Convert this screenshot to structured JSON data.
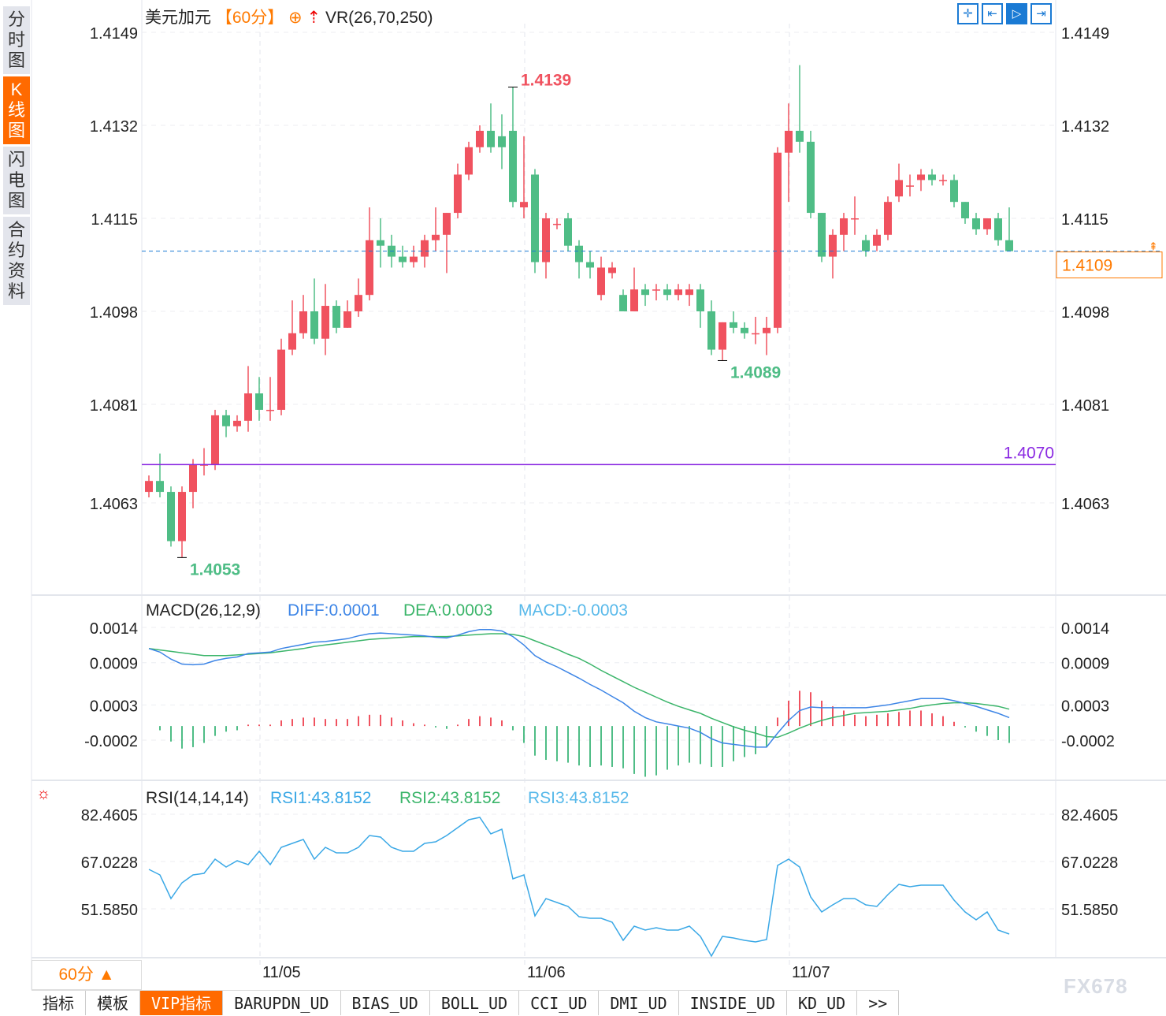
{
  "sidebar": {
    "items": [
      {
        "label": "分时图",
        "active": false
      },
      {
        "label": "K线图",
        "active": true
      },
      {
        "label": "闪电图",
        "active": false
      },
      {
        "label": "合约资料",
        "active": false
      }
    ]
  },
  "header": {
    "symbol": "美元加元",
    "period": "【60分】",
    "indicator": "VR(26,70,250)",
    "tools": [
      "crosshair-icon",
      "scroll-start-icon",
      "scroll-latest-icon",
      "jump-end-icon"
    ]
  },
  "colors": {
    "up": "#f0525f",
    "down": "#4fbd86",
    "diff": "#3d85e6",
    "dea": "#3bb56a",
    "macd": "#58b9ea",
    "rsi": "#3aa8e6",
    "last": "#ff7a00",
    "hline": "#8b2be2"
  },
  "chart_data": [
    {
      "type": "candlestick",
      "panel": "price",
      "yticks": [
        "1.4149",
        "1.4132",
        "1.4115",
        "1.4098",
        "1.4081",
        "1.4063"
      ],
      "ylim": [
        1.4045,
        1.4152
      ],
      "xticks": [
        "11/05",
        "11/06",
        "11/07"
      ],
      "xtick_index": [
        10,
        34,
        58
      ],
      "last_price": "1.4109",
      "horizontal_line": "1.4070",
      "high_label": "1.4139",
      "low_label": "1.4089",
      "low2_label": "1.4053",
      "ohlc": [
        [
          1.4065,
          1.4067,
          1.4068,
          1.4064
        ],
        [
          1.4067,
          1.4065,
          1.4072,
          1.4064
        ],
        [
          1.4065,
          1.4056,
          1.4066,
          1.4055
        ],
        [
          1.4056,
          1.4065,
          1.4066,
          1.4053
        ],
        [
          1.4065,
          1.407,
          1.4071,
          1.4062
        ],
        [
          1.407,
          1.407,
          1.4073,
          1.4068
        ],
        [
          1.407,
          1.4079,
          1.408,
          1.4069
        ],
        [
          1.4079,
          1.4077,
          1.408,
          1.4075
        ],
        [
          1.4077,
          1.4078,
          1.4079,
          1.4076
        ],
        [
          1.4078,
          1.4083,
          1.4088,
          1.4076
        ],
        [
          1.4083,
          1.408,
          1.4086,
          1.4078
        ],
        [
          1.408,
          1.408,
          1.4086,
          1.4078
        ],
        [
          1.408,
          1.4091,
          1.4093,
          1.4079
        ],
        [
          1.4091,
          1.4094,
          1.41,
          1.409
        ],
        [
          1.4094,
          1.4098,
          1.4101,
          1.4093
        ],
        [
          1.4098,
          1.4093,
          1.4104,
          1.4092
        ],
        [
          1.4093,
          1.4099,
          1.4103,
          1.409
        ],
        [
          1.4099,
          1.4095,
          1.41,
          1.4094
        ],
        [
          1.4095,
          1.4098,
          1.41,
          1.4095
        ],
        [
          1.4098,
          1.4101,
          1.4104,
          1.4097
        ],
        [
          1.4101,
          1.4111,
          1.4117,
          1.41
        ],
        [
          1.4111,
          1.411,
          1.4115,
          1.4106
        ],
        [
          1.411,
          1.4108,
          1.4112,
          1.4106
        ],
        [
          1.4108,
          1.4107,
          1.411,
          1.4106
        ],
        [
          1.4107,
          1.4108,
          1.411,
          1.4106
        ],
        [
          1.4108,
          1.4111,
          1.4112,
          1.4106
        ],
        [
          1.4111,
          1.4112,
          1.4117,
          1.4109
        ],
        [
          1.4112,
          1.4116,
          1.4116,
          1.4105
        ],
        [
          1.4116,
          1.4123,
          1.4125,
          1.4115
        ],
        [
          1.4123,
          1.4128,
          1.4129,
          1.4122
        ],
        [
          1.4128,
          1.4131,
          1.4132,
          1.4127
        ],
        [
          1.4131,
          1.4128,
          1.4136,
          1.4127
        ],
        [
          1.413,
          1.4128,
          1.4134,
          1.4124
        ],
        [
          1.4131,
          1.4118,
          1.4139,
          1.4117
        ],
        [
          1.4117,
          1.4118,
          1.413,
          1.4115
        ],
        [
          1.4123,
          1.4107,
          1.4124,
          1.4105
        ],
        [
          1.4107,
          1.4115,
          1.4116,
          1.4104
        ],
        [
          1.4114,
          1.4114,
          1.4115,
          1.4113
        ],
        [
          1.4115,
          1.411,
          1.4116,
          1.4109
        ],
        [
          1.411,
          1.4107,
          1.4111,
          1.4104
        ],
        [
          1.4107,
          1.4106,
          1.4109,
          1.4104
        ],
        [
          1.4101,
          1.4106,
          1.4108,
          1.41
        ],
        [
          1.4105,
          1.4106,
          1.4107,
          1.4104
        ],
        [
          1.4101,
          1.4098,
          1.4102,
          1.4098
        ],
        [
          1.4098,
          1.4102,
          1.4106,
          1.4098
        ],
        [
          1.4102,
          1.4101,
          1.4103,
          1.4099
        ],
        [
          1.4102,
          1.4102,
          1.4103,
          1.41
        ],
        [
          1.4102,
          1.4101,
          1.4103,
          1.41
        ],
        [
          1.4101,
          1.4102,
          1.4103,
          1.41
        ],
        [
          1.4101,
          1.4102,
          1.4103,
          1.4099
        ],
        [
          1.4102,
          1.4098,
          1.4103,
          1.4095
        ],
        [
          1.4098,
          1.4091,
          1.41,
          1.409
        ],
        [
          1.4091,
          1.4096,
          1.4096,
          1.4089
        ],
        [
          1.4096,
          1.4095,
          1.4098,
          1.4094
        ],
        [
          1.4095,
          1.4094,
          1.4096,
          1.4093
        ],
        [
          1.4094,
          1.4094,
          1.4097,
          1.4092
        ],
        [
          1.4094,
          1.4095,
          1.4097,
          1.409
        ],
        [
          1.4095,
          1.4127,
          1.4128,
          1.4094
        ],
        [
          1.4127,
          1.4131,
          1.4136,
          1.4118
        ],
        [
          1.4131,
          1.4129,
          1.4143,
          1.4127
        ],
        [
          1.4129,
          1.4116,
          1.4131,
          1.4115
        ],
        [
          1.4116,
          1.4108,
          1.4116,
          1.4107
        ],
        [
          1.4108,
          1.4112,
          1.4113,
          1.4104
        ],
        [
          1.4112,
          1.4115,
          1.4116,
          1.4109
        ],
        [
          1.4115,
          1.4115,
          1.4119,
          1.4112
        ],
        [
          1.4111,
          1.4109,
          1.4112,
          1.4108
        ],
        [
          1.411,
          1.4112,
          1.4113,
          1.4109
        ],
        [
          1.4112,
          1.4118,
          1.4119,
          1.4111
        ],
        [
          1.4119,
          1.4122,
          1.4125,
          1.4118
        ],
        [
          1.4121,
          1.4121,
          1.4123,
          1.4119
        ],
        [
          1.4122,
          1.4123,
          1.4124,
          1.412
        ],
        [
          1.4123,
          1.4122,
          1.4124,
          1.4121
        ],
        [
          1.4122,
          1.4122,
          1.4123,
          1.4121
        ],
        [
          1.4122,
          1.4118,
          1.4123,
          1.4117
        ],
        [
          1.4118,
          1.4115,
          1.4118,
          1.4114
        ],
        [
          1.4115,
          1.4113,
          1.4116,
          1.4112
        ],
        [
          1.4113,
          1.4115,
          1.4115,
          1.4112
        ],
        [
          1.4115,
          1.4111,
          1.4116,
          1.411
        ],
        [
          1.4111,
          1.4109,
          1.4117,
          1.4109
        ]
      ]
    },
    {
      "type": "line+bar",
      "panel": "macd",
      "title": "MACD(26,12,9)",
      "legend": [
        "DIFF:0.0001",
        "DEA:0.0003",
        "MACD:-0.0003"
      ],
      "yticks": [
        "0.0014",
        "0.0009",
        "0.0003",
        "-0.0002"
      ],
      "ylim": [
        -0.00087,
        0.00176
      ],
      "diff": [
        0.0011,
        0.00105,
        0.00095,
        0.00088,
        0.00087,
        0.00088,
        0.00093,
        0.00096,
        0.00098,
        0.00103,
        0.00104,
        0.00105,
        0.0011,
        0.00113,
        0.00116,
        0.00119,
        0.0012,
        0.00122,
        0.00124,
        0.00128,
        0.00131,
        0.00132,
        0.00131,
        0.0013,
        0.00129,
        0.00128,
        0.00126,
        0.00125,
        0.00129,
        0.00134,
        0.00137,
        0.00137,
        0.00135,
        0.00127,
        0.00115,
        0.001,
        0.00091,
        0.00084,
        0.00076,
        0.00068,
        0.00059,
        0.00051,
        0.00042,
        0.00033,
        0.00021,
        0.00012,
        6e-05,
        3e-05,
        0.0,
        -3e-05,
        -9e-05,
        -0.00018,
        -0.00024,
        -0.00026,
        -0.00028,
        -0.0003,
        -0.0003,
        -0.0001,
        8e-05,
        0.00022,
        0.00027,
        0.00026,
        0.00026,
        0.00026,
        0.00026,
        0.00026,
        0.00028,
        0.0003,
        0.00033,
        0.00036,
        0.00039,
        0.00039,
        0.00039,
        0.00036,
        0.00032,
        0.00028,
        0.00023,
        0.00018,
        0.00012
      ],
      "dea": [
        0.0011,
        0.00108,
        0.00106,
        0.00104,
        0.00102,
        0.001,
        0.001,
        0.001,
        0.00101,
        0.00102,
        0.00103,
        0.00104,
        0.00106,
        0.00108,
        0.0011,
        0.00113,
        0.00115,
        0.00117,
        0.00119,
        0.00121,
        0.00123,
        0.00124,
        0.00125,
        0.00126,
        0.00127,
        0.00127,
        0.00127,
        0.00127,
        0.00128,
        0.00129,
        0.0013,
        0.00131,
        0.00131,
        0.0013,
        0.00127,
        0.00121,
        0.00115,
        0.00109,
        0.00102,
        0.00096,
        0.00088,
        0.00079,
        0.00071,
        0.00063,
        0.00055,
        0.00048,
        0.00041,
        0.00034,
        0.00028,
        0.00023,
        0.00018,
        0.00011,
        5e-05,
        -1e-05,
        -6e-05,
        -0.0001,
        -0.00015,
        -0.00016,
        -0.0001,
        -3e-05,
        3e-05,
        8e-05,
        0.00012,
        0.00015,
        0.00018,
        0.00019,
        0.0002,
        0.00021,
        0.00023,
        0.00025,
        0.00028,
        0.0003,
        0.00032,
        0.00033,
        0.00033,
        0.00032,
        0.0003,
        0.00028,
        0.00024
      ]
    },
    {
      "type": "line",
      "panel": "rsi",
      "title": "RSI(14,14,14)",
      "legend": [
        "RSI1:43.8152",
        "RSI2:43.8152",
        "RSI3:43.8152"
      ],
      "yticks": [
        "82.4605",
        "67.0228",
        "51.5850"
      ],
      "ylim": [
        33,
        87
      ],
      "rsi": [
        64.45,
        62.65,
        54.93,
        60.08,
        62.65,
        63.16,
        67.79,
        65.22,
        67.28,
        65.99,
        70.37,
        65.99,
        71.65,
        72.94,
        74.23,
        67.79,
        71.65,
        69.85,
        69.85,
        71.65,
        75.51,
        75.0,
        71.65,
        70.37,
        70.37,
        72.94,
        73.45,
        75.51,
        78.09,
        80.66,
        81.43,
        76.03,
        77.57,
        61.36,
        62.65,
        49.27,
        54.93,
        53.64,
        52.36,
        49.01,
        48.5,
        48.5,
        47.21,
        41.29,
        45.92,
        44.64,
        45.41,
        44.64,
        44.64,
        45.92,
        42.58,
        36.15,
        42.58,
        42.06,
        41.29,
        40.78,
        41.55,
        65.74,
        67.79,
        65.22,
        55.45,
        50.56,
        52.87,
        54.93,
        54.93,
        52.87,
        52.36,
        56.22,
        59.56,
        58.79,
        59.3,
        59.3,
        59.3,
        54.41,
        50.56,
        47.99,
        50.56,
        44.64,
        43.35
      ]
    }
  ],
  "footer": {
    "period_button": "60分 ▲",
    "tabs": [
      {
        "label": "指标",
        "active": false
      },
      {
        "label": "模板",
        "active": false
      },
      {
        "label": "VIP指标",
        "active": true
      },
      {
        "label": "BARUPDN_UD"
      },
      {
        "label": "BIAS_UD"
      },
      {
        "label": "BOLL_UD"
      },
      {
        "label": "CCI_UD"
      },
      {
        "label": "DMI_UD"
      },
      {
        "label": "INSIDE_UD"
      },
      {
        "label": "KD_UD"
      },
      {
        "label": ">>"
      }
    ],
    "watermark": "FX678"
  }
}
